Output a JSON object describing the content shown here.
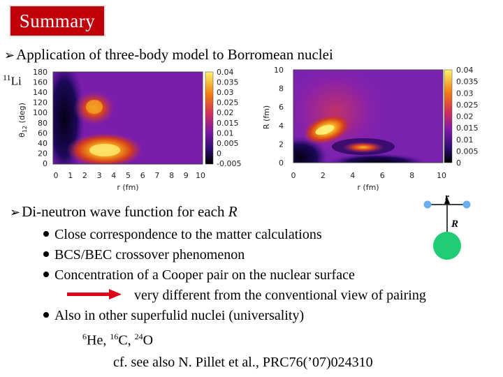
{
  "slide_title": "Summary",
  "heading1": "Application of three-body model to Borromean nuclei",
  "nucleus_label": {
    "mass": "11",
    "symbol": "Li"
  },
  "left_plot": {
    "xlabel": "r (fm)",
    "ylabel_main": "θ",
    "ylabel_sub": "12",
    "ylabel_unit": " (deg)",
    "x_ticks": [
      "0",
      "1",
      "2",
      "3",
      "4",
      "5",
      "6",
      "7",
      "8",
      "9",
      "10"
    ],
    "y_ticks": [
      "180",
      "160",
      "140",
      "120",
      "100",
      "80",
      "60",
      "40",
      "20",
      "0"
    ],
    "colorbar_ticks": [
      "0.04",
      "0.035",
      "0.03",
      "0.025",
      "0.02",
      "0.015",
      "0.01",
      "0.005",
      "0",
      "-0.005"
    ]
  },
  "right_plot": {
    "xlabel": "r (fm)",
    "ylabel": "R (fm)",
    "x_ticks": [
      "0",
      "2",
      "4",
      "6",
      "8",
      "10"
    ],
    "y_ticks": [
      "10",
      "8",
      "6",
      "4",
      "2",
      "0"
    ],
    "colorbar_ticks": [
      "0.04",
      "0.035",
      "0.03",
      "0.025",
      "0.02",
      "0.015",
      "0.01",
      "0.005",
      "0"
    ]
  },
  "heading2": {
    "text": "Di-neutron wave function for each ",
    "italic": "R"
  },
  "bullets": [
    "Close correspondence to the matter calculations",
    "BCS/BEC crossover phenomenon",
    "Concentration of a Cooper pair on the nuclear surface"
  ],
  "arrow_note": "very different from the conventional view of pairing",
  "bullet4": "Also in other superfulid nuclei (universality)",
  "nuclei": [
    {
      "mass": "6",
      "symbol": "He, "
    },
    {
      "mass": "16",
      "symbol": "C, "
    },
    {
      "mass": "24",
      "symbol": "O"
    }
  ],
  "reference": "cf. see also N. Pillet et al., PRC76(’07)024310",
  "diagram": {
    "r_label": "r",
    "R_label": "R"
  },
  "colors": {
    "title_bg": "#c0000a",
    "arrow": "#e0001a",
    "core": "#22cc77",
    "neutron": "#6aaeea"
  }
}
